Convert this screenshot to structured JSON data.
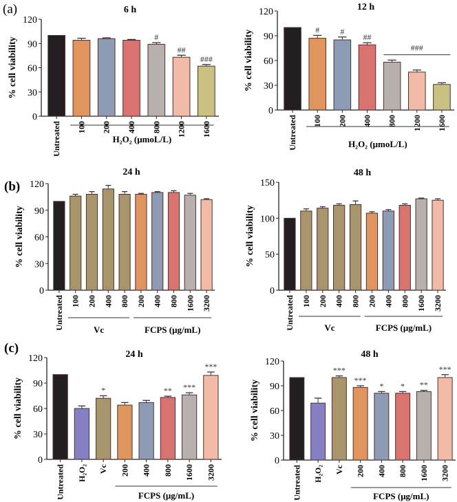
{
  "panel_labels": [
    "(a)",
    "(b)",
    "(c)"
  ],
  "colors": {
    "black": "#231f20",
    "orange": "#e0955f",
    "bluegray": "#8e9bb5",
    "red": "#d9736f",
    "gray": "#b8b0ad",
    "pink": "#f1bba8",
    "olive": "#c9c181",
    "khaki": "#a8956b",
    "purple": "#8580c4"
  },
  "chart_data": [
    {
      "type": "bar",
      "title": "6 h",
      "ylabel": "% cell viability",
      "ylim": [
        0,
        120
      ],
      "yticks": [
        "0",
        "30",
        "60",
        "90",
        "120"
      ],
      "categories": [
        "Untreated",
        "100",
        "200",
        "400",
        "800",
        "1200",
        "1600"
      ],
      "values": [
        100,
        94,
        96,
        94,
        89,
        73,
        62
      ],
      "errors": [
        0,
        2.5,
        1,
        1,
        2,
        2.5,
        2
      ],
      "bar_colors": [
        "black",
        "orange",
        "bluegray",
        "red",
        "gray",
        "pink",
        "olive"
      ],
      "annotations": [
        "",
        "",
        "",
        "",
        "#",
        "##",
        "###"
      ],
      "groups": [
        {
          "label": "H₂O₂ (μmoL/L)",
          "from": 1,
          "to": 6
        }
      ]
    },
    {
      "type": "bar",
      "title": "12 h",
      "ylabel": "% cell viability",
      "ylim": [
        0,
        120
      ],
      "yticks": [
        "0",
        "30",
        "60",
        "90",
        "120"
      ],
      "categories": [
        "Untreated",
        "100",
        "200",
        "400",
        "800",
        "1200",
        "1600"
      ],
      "values": [
        100,
        87,
        85,
        79,
        58,
        46,
        31
      ],
      "errors": [
        0,
        3.5,
        3.5,
        2.5,
        2.5,
        2.5,
        2
      ],
      "bar_colors": [
        "black",
        "orange",
        "bluegray",
        "red",
        "gray",
        "pink",
        "olive"
      ],
      "annotations": [
        "",
        "#",
        "#",
        "##",
        "",
        "",
        ""
      ],
      "bracket": {
        "text": "###",
        "from": 4,
        "to": 6,
        "value": 67
      },
      "groups": [
        {
          "label": "H₂O₂ (μmoL/L)",
          "from": 1,
          "to": 6
        }
      ]
    },
    {
      "type": "bar",
      "title": "24 h",
      "ylabel": "% cell viability",
      "ylim": [
        0,
        120
      ],
      "yticks": [
        "0",
        "30",
        "60",
        "90",
        "120"
      ],
      "categories": [
        "Untreated",
        "100",
        "200",
        "400",
        "800",
        "200",
        "400",
        "800",
        "1600",
        "3200"
      ],
      "values": [
        100,
        106,
        108,
        114,
        108,
        108,
        110,
        110,
        107,
        102
      ],
      "errors": [
        0,
        2,
        3,
        4,
        3,
        1,
        1,
        2,
        2,
        1
      ],
      "bar_colors": [
        "black",
        "khaki",
        "khaki",
        "khaki",
        "khaki",
        "orange",
        "bluegray",
        "red",
        "gray",
        "pink"
      ],
      "annotations": [
        "",
        "",
        "",
        "",
        "",
        "",
        "",
        "",
        "",
        ""
      ],
      "groups": [
        {
          "label": "Vc",
          "from": 1,
          "to": 4
        },
        {
          "label": "FCPS (μg/mL)",
          "from": 5,
          "to": 9
        }
      ]
    },
    {
      "type": "bar",
      "title": "48 h",
      "ylabel": "% cell viability",
      "ylim": [
        0,
        150
      ],
      "yticks": [
        "0",
        "50",
        "100",
        "150"
      ],
      "categories": [
        "Untreated",
        "100",
        "200",
        "400",
        "800",
        "200",
        "400",
        "800",
        "1600",
        "3200"
      ],
      "values": [
        100,
        110,
        114,
        118,
        119,
        107,
        110,
        118,
        127,
        125
      ],
      "errors": [
        0,
        3,
        2,
        2,
        5,
        2,
        2,
        2,
        1,
        2
      ],
      "bar_colors": [
        "black",
        "khaki",
        "khaki",
        "khaki",
        "khaki",
        "orange",
        "bluegray",
        "red",
        "gray",
        "pink"
      ],
      "annotations": [
        "",
        "",
        "",
        "",
        "",
        "",
        "",
        "",
        "",
        ""
      ],
      "groups": [
        {
          "label": "Vc",
          "from": 1,
          "to": 4
        },
        {
          "label": "FCPS (μg/mL)",
          "from": 5,
          "to": 9
        }
      ]
    },
    {
      "type": "bar",
      "title": "24 h",
      "ylabel": "% cell viability",
      "ylim": [
        0,
        120
      ],
      "yticks": [
        "0",
        "30",
        "60",
        "90",
        "120"
      ],
      "categories": [
        "Untreated",
        "H₂O₂",
        "Vc",
        "200",
        "400",
        "800",
        "1600",
        "3200"
      ],
      "values": [
        100,
        60,
        72,
        64,
        67,
        73,
        76,
        99
      ],
      "errors": [
        0,
        3,
        3,
        3,
        2.5,
        1.5,
        2.5,
        4
      ],
      "bar_colors": [
        "black",
        "purple",
        "khaki",
        "orange",
        "bluegray",
        "red",
        "gray",
        "pink"
      ],
      "annotations": [
        "",
        "",
        "*",
        "",
        "",
        "**",
        "***",
        "***"
      ],
      "groups": [
        {
          "label": "FCPS (μg/mL)",
          "from": 3,
          "to": 7
        }
      ]
    },
    {
      "type": "bar",
      "title": "48 h",
      "ylabel": "% cell viability",
      "ylim": [
        0,
        120
      ],
      "yticks": [
        "0",
        "30",
        "60",
        "90",
        "120"
      ],
      "categories": [
        "Untreated",
        "H₂O₂",
        "Vc",
        "200",
        "400",
        "800",
        "1600",
        "3200"
      ],
      "values": [
        100,
        69,
        100,
        88,
        81,
        81,
        83,
        100
      ],
      "errors": [
        0,
        6,
        2,
        2,
        2,
        2,
        1.5,
        3.5
      ],
      "bar_colors": [
        "black",
        "purple",
        "khaki",
        "orange",
        "bluegray",
        "red",
        "gray",
        "pink"
      ],
      "annotations": [
        "",
        "",
        "***",
        "***",
        "*",
        "*",
        "**",
        "***"
      ],
      "groups": [
        {
          "label": "FCPS (μg/mL)",
          "from": 3,
          "to": 7
        }
      ]
    }
  ]
}
